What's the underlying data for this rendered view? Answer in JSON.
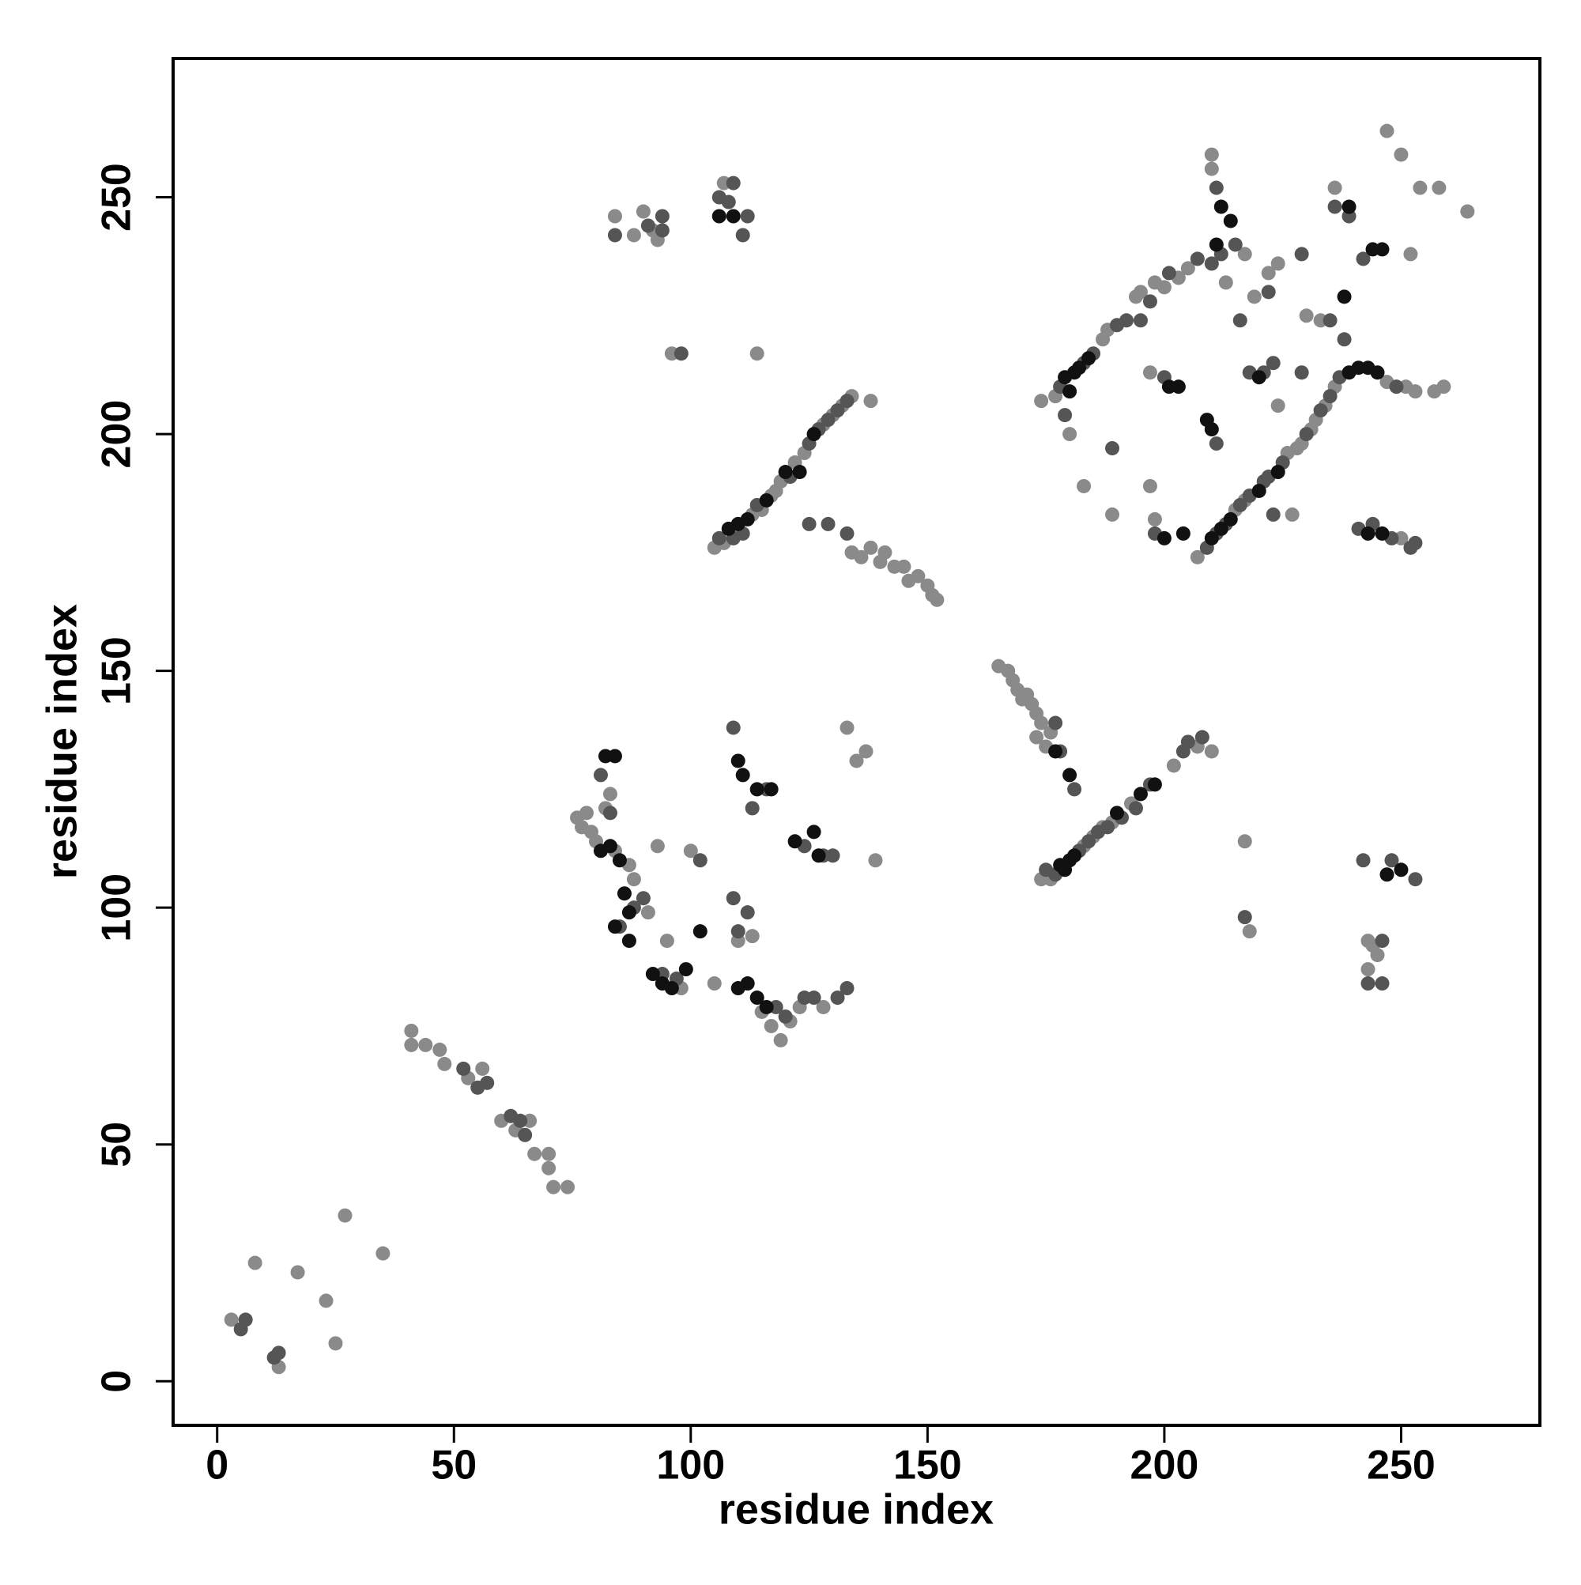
{
  "chart_data": {
    "type": "scatter",
    "x_label": "residue index",
    "y_label": "residue index",
    "xlim": [
      -9.3,
      279.3
    ],
    "ylim": [
      -9.3,
      279.3
    ],
    "xticks": [
      0,
      50,
      100,
      150,
      200,
      250
    ],
    "yticks": [
      0,
      50,
      100,
      150,
      200,
      250
    ],
    "grid": false,
    "series": [
      {
        "color": "#8a8a8a",
        "x": [
          3,
          8,
          17,
          23,
          25,
          27,
          35,
          13,
          41,
          41,
          44,
          47,
          48,
          53,
          56,
          60,
          63,
          66,
          67,
          70,
          70,
          71,
          74,
          76,
          77,
          78,
          79,
          80,
          82,
          83,
          84,
          87,
          88,
          91,
          93,
          95,
          98,
          100,
          105,
          110,
          113,
          115,
          117,
          119,
          121,
          123,
          128,
          139,
          135,
          137,
          133,
          105,
          107,
          113,
          115,
          117,
          118,
          119,
          122,
          124,
          128,
          130,
          132,
          134,
          138,
          134,
          136,
          138,
          140,
          141,
          143,
          145,
          146,
          148,
          150,
          151,
          152,
          84,
          88,
          90,
          92,
          93,
          107,
          96,
          114,
          165,
          167,
          168,
          169,
          170,
          171,
          172,
          173,
          174,
          173,
          175,
          176,
          174,
          176,
          183,
          185,
          187,
          189,
          193,
          202,
          207,
          210,
          217,
          218,
          243,
          244,
          245,
          243,
          174,
          177,
          187,
          188,
          194,
          195,
          198,
          200,
          203,
          205,
          180,
          183,
          189,
          197,
          198,
          197,
          210,
          210,
          213,
          217,
          219,
          222,
          224,
          230,
          233,
          236,
          247,
          250,
          252,
          254,
          258,
          264,
          207,
          215,
          217,
          226,
          228,
          229,
          231,
          232,
          234,
          236,
          247,
          251,
          253,
          257,
          259,
          227,
          224,
          250
        ],
        "values": [
          13,
          25,
          23,
          17,
          8,
          35,
          27,
          3,
          74,
          71,
          71,
          70,
          67,
          64,
          66,
          55,
          53,
          55,
          48,
          48,
          45,
          41,
          41,
          119,
          117,
          120,
          116,
          114,
          121,
          124,
          112,
          109,
          106,
          99,
          113,
          93,
          83,
          112,
          84,
          93,
          94,
          78,
          75,
          72,
          76,
          79,
          79,
          110,
          131,
          133,
          138,
          176,
          177,
          183,
          184,
          187,
          188,
          190,
          194,
          196,
          202,
          204,
          206,
          208,
          207,
          175,
          174,
          176,
          173,
          175,
          172,
          172,
          169,
          170,
          168,
          166,
          165,
          246,
          242,
          247,
          243,
          241,
          253,
          217,
          217,
          151,
          150,
          148,
          146,
          144,
          145,
          143,
          141,
          139,
          136,
          134,
          137,
          106,
          106,
          113,
          115,
          117,
          118,
          122,
          130,
          134,
          133,
          114,
          95,
          93,
          92,
          90,
          87,
          207,
          208,
          220,
          222,
          229,
          230,
          232,
          231,
          233,
          235,
          200,
          189,
          183,
          189,
          182,
          213,
          256,
          259,
          232,
          238,
          229,
          234,
          236,
          225,
          224,
          252,
          264,
          259,
          238,
          252,
          252,
          247,
          174,
          184,
          186,
          196,
          197,
          198,
          201,
          203,
          206,
          210,
          211,
          210,
          209,
          209,
          210,
          183,
          206,
          178
        ]
      },
      {
        "color": "#555555",
        "x": [
          5,
          6,
          12,
          13,
          52,
          55,
          57,
          62,
          64,
          65,
          81,
          83,
          85,
          88,
          90,
          94,
          97,
          102,
          109,
          110,
          112,
          113,
          118,
          120,
          124,
          126,
          131,
          133,
          128,
          130,
          109,
          116,
          124,
          106,
          109,
          111,
          114,
          121,
          125,
          127,
          129,
          131,
          133,
          125,
          129,
          133,
          84,
          91,
          94,
          94,
          106,
          108,
          109,
          111,
          112,
          98,
          177,
          178,
          181,
          175,
          177,
          182,
          184,
          186,
          188,
          191,
          194,
          197,
          204,
          205,
          208,
          217,
          242,
          243,
          246,
          248,
          253,
          246,
          178,
          183,
          185,
          190,
          192,
          197,
          201,
          207,
          179,
          189,
          198,
          195,
          200,
          211,
          210,
          212,
          211,
          215,
          216,
          218,
          221,
          223,
          229,
          222,
          235,
          238,
          236,
          239,
          242,
          252,
          209,
          211,
          213,
          216,
          218,
          221,
          222,
          225,
          230,
          233,
          235,
          237,
          249,
          223,
          229,
          241,
          244,
          248,
          253
        ],
        "values": [
          11,
          13,
          5,
          6,
          66,
          62,
          63,
          56,
          55,
          52,
          128,
          120,
          96,
          100,
          102,
          86,
          85,
          110,
          102,
          95,
          99,
          121,
          79,
          77,
          81,
          81,
          81,
          83,
          111,
          111,
          138,
          125,
          113,
          178,
          178,
          179,
          185,
          191,
          198,
          201,
          203,
          205,
          207,
          181,
          181,
          179,
          242,
          244,
          246,
          243,
          250,
          249,
          253,
          242,
          246,
          217,
          139,
          133,
          125,
          108,
          107,
          112,
          114,
          116,
          117,
          119,
          121,
          126,
          133,
          135,
          136,
          98,
          110,
          84,
          84,
          110,
          106,
          93,
          210,
          215,
          217,
          223,
          224,
          228,
          234,
          237,
          204,
          197,
          179,
          224,
          212,
          198,
          236,
          238,
          252,
          240,
          224,
          213,
          213,
          215,
          238,
          230,
          224,
          220,
          248,
          246,
          237,
          176,
          176,
          179,
          181,
          185,
          187,
          190,
          191,
          194,
          200,
          205,
          208,
          212,
          210,
          183,
          213,
          180,
          181,
          178,
          177
        ]
      },
      {
        "color": "#111111",
        "x": [
          82,
          84,
          81,
          83,
          85,
          86,
          87,
          84,
          87,
          92,
          94,
          96,
          99,
          102,
          110,
          112,
          114,
          116,
          110,
          111,
          114,
          117,
          126,
          122,
          127,
          108,
          110,
          112,
          116,
          120,
          123,
          126,
          106,
          109,
          177,
          180,
          178,
          179,
          180,
          181,
          190,
          195,
          198,
          247,
          250,
          179,
          180,
          181,
          182,
          184,
          201,
          203,
          209,
          210,
          212,
          211,
          214,
          220,
          238,
          239,
          244,
          246,
          200,
          204,
          210,
          212,
          214,
          220,
          224,
          239,
          241,
          243,
          245,
          243,
          246
        ],
        "values": [
          132,
          132,
          112,
          113,
          110,
          103,
          99,
          96,
          93,
          86,
          84,
          83,
          87,
          95,
          83,
          84,
          81,
          79,
          131,
          128,
          125,
          125,
          116,
          114,
          111,
          180,
          181,
          182,
          186,
          192,
          192,
          200,
          246,
          246,
          133,
          128,
          109,
          108,
          110,
          111,
          120,
          124,
          126,
          107,
          108,
          212,
          209,
          213,
          214,
          216,
          210,
          210,
          203,
          201,
          248,
          240,
          245,
          212,
          229,
          248,
          239,
          239,
          178,
          179,
          178,
          180,
          182,
          188,
          192,
          213,
          214,
          214,
          213,
          179,
          179
        ]
      }
    ]
  }
}
